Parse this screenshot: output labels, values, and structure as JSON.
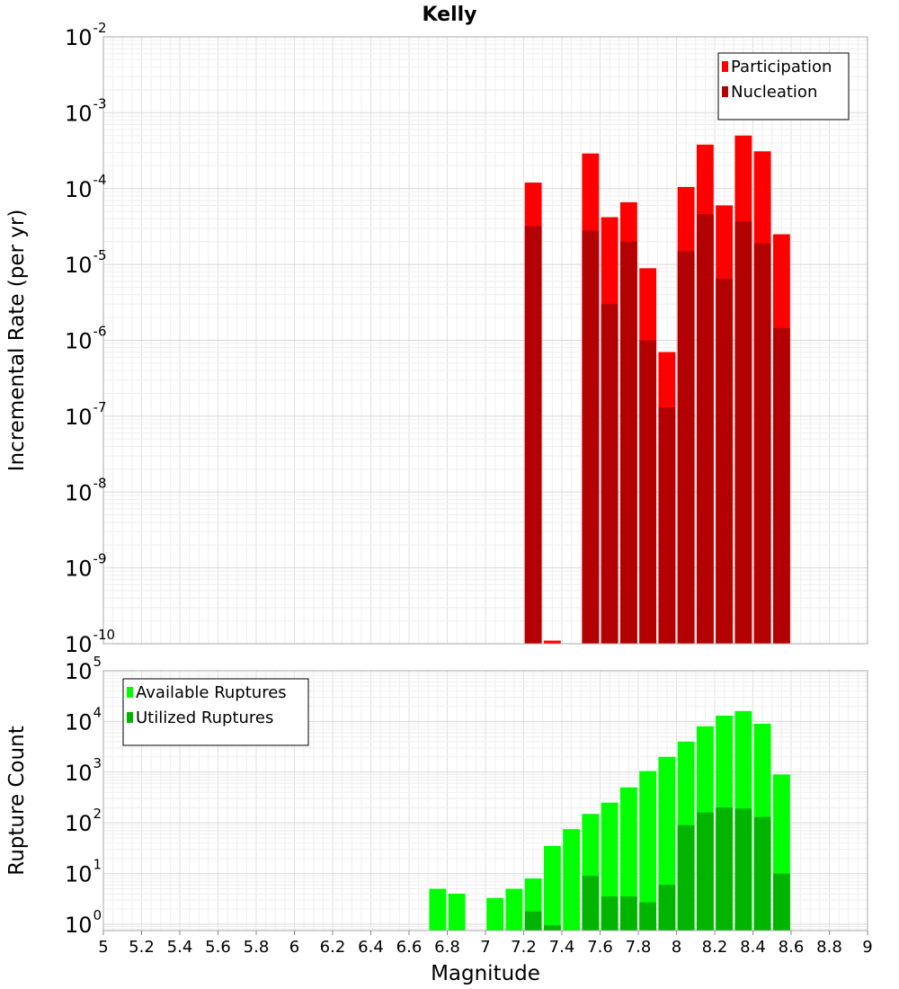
{
  "title": "Kelly",
  "chart_data": [
    {
      "type": "bar",
      "yscale": "log",
      "ylabel": "Incremental Rate (per yr)",
      "xlim": [
        5,
        9
      ],
      "ylim": [
        1e-10,
        0.01
      ],
      "ytick_exponents": [
        -10,
        -9,
        -8,
        -7,
        -6,
        -5,
        -4,
        -3,
        -2
      ],
      "grid": true,
      "legend_position": "top-right",
      "bin_width": 0.1,
      "series": [
        {
          "name": "Participation",
          "color": "#ff0000",
          "x": [
            7.25,
            7.35,
            7.55,
            7.65,
            7.75,
            7.85,
            7.95,
            8.05,
            8.15,
            8.25,
            8.35,
            8.45,
            8.55
          ],
          "values": [
            0.00012,
            1.1e-10,
            0.00029,
            4.2e-05,
            6.6e-05,
            8.9e-06,
            7e-07,
            0.000105,
            0.00038,
            6e-05,
            0.0005,
            0.00031,
            2.5e-05
          ]
        },
        {
          "name": "Nucleation",
          "color": "#b30000",
          "x": [
            7.25,
            7.55,
            7.65,
            7.75,
            7.85,
            7.95,
            8.05,
            8.15,
            8.25,
            8.35,
            8.45,
            8.55
          ],
          "values": [
            3.2e-05,
            2.8e-05,
            3e-06,
            2e-05,
            1e-06,
            1.3e-07,
            1.5e-05,
            4.6e-05,
            6.5e-06,
            3.7e-05,
            1.9e-05,
            1.45e-06
          ]
        }
      ]
    },
    {
      "type": "bar",
      "yscale": "log",
      "xlabel": "Magnitude",
      "ylabel": "Rupture Count",
      "xlim": [
        5,
        9
      ],
      "ylim": [
        0.75,
        100000.0
      ],
      "ytick_exponents": [
        0,
        1,
        2,
        3,
        4,
        5
      ],
      "xticks": [
        "5",
        "5.2",
        "5.4",
        "5.6",
        "5.8",
        "6",
        "6.2",
        "6.4",
        "6.6",
        "6.8",
        "7",
        "7.2",
        "7.4",
        "7.6",
        "7.8",
        "8",
        "8.2",
        "8.4",
        "8.6",
        "8.8",
        "9"
      ],
      "grid": true,
      "legend_position": "top-left",
      "bin_width": 0.1,
      "series": [
        {
          "name": "Available Ruptures",
          "color": "#00ff00",
          "x": [
            6.75,
            6.85,
            7.05,
            7.15,
            7.25,
            7.35,
            7.45,
            7.55,
            7.65,
            7.75,
            7.85,
            7.95,
            8.05,
            8.15,
            8.25,
            8.35,
            8.45,
            8.55
          ],
          "values": [
            5,
            4,
            3.3,
            5,
            8,
            35,
            75,
            150,
            250,
            500,
            1050,
            2000,
            4000,
            8000,
            13000,
            16000,
            9000,
            900
          ]
        },
        {
          "name": "Utilized Ruptures",
          "color": "#00b400",
          "x": [
            7.25,
            7.35,
            7.55,
            7.65,
            7.75,
            7.85,
            7.95,
            8.05,
            8.15,
            8.25,
            8.35,
            8.45,
            8.55
          ],
          "values": [
            1.8,
            0.95,
            9,
            3.5,
            3.5,
            2.7,
            6,
            90,
            160,
            200,
            190,
            130,
            10
          ]
        }
      ]
    }
  ]
}
